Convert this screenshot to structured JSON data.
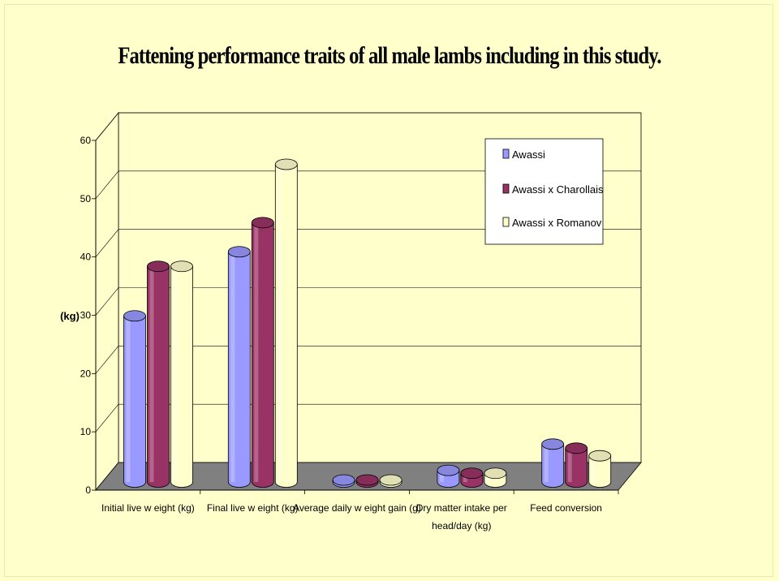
{
  "chart_data": {
    "type": "bar",
    "title": "Fattening performance traits of all male lambs including in this study.",
    "ylabel": "(kg)",
    "xlabel": "",
    "ylim": [
      0,
      60
    ],
    "yticks": [
      "0",
      "10",
      "20",
      "30",
      "40",
      "50",
      "60"
    ],
    "categories": [
      [
        "Initial live w eight (kg)"
      ],
      [
        "Final live w eight (kg)"
      ],
      [
        "Average daily w eight gain (g)"
      ],
      [
        "Dry matter intake per",
        "head/day (kg)"
      ],
      [
        "Feed conversion"
      ]
    ],
    "series": [
      {
        "name": "Awassi",
        "values": [
          28.5,
          39.5,
          0.35,
          2.0,
          6.5
        ],
        "color": "#9999ff"
      },
      {
        "name": "Awassi x Charollais",
        "values": [
          37,
          44.5,
          0.35,
          1.5,
          5.8
        ],
        "color": "#993366"
      },
      {
        "name": "Awassi x Romanov",
        "values": [
          37,
          54.5,
          0.35,
          1.5,
          4.5
        ],
        "color": "#ffffcc"
      }
    ],
    "grid": true,
    "legend_position": "top-right",
    "style": "3d-cylinder"
  }
}
